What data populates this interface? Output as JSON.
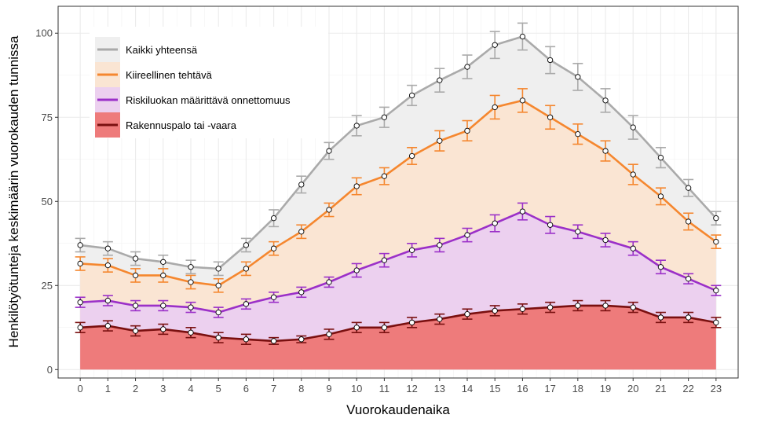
{
  "chart_data": {
    "type": "area",
    "title": "",
    "xlabel": "Vuorokaudenaika",
    "ylabel": "Henkilötyötunteja keskimäärin vuorokauden tunnissa",
    "x": [
      0,
      1,
      2,
      3,
      4,
      5,
      6,
      7,
      8,
      9,
      10,
      11,
      12,
      13,
      14,
      15,
      16,
      17,
      18,
      19,
      20,
      21,
      22,
      23
    ],
    "xlim": [
      -0.8,
      23.8
    ],
    "ylim": [
      -2.5,
      108
    ],
    "yticks": [
      0,
      25,
      50,
      75,
      100
    ],
    "grid": true,
    "legend_position": "top-left",
    "series": [
      {
        "name": "Kaikki yhteensä",
        "line_color": "#aaaaaa",
        "fill_color": "#efefef",
        "values": [
          37,
          36,
          33,
          32,
          30.5,
          30,
          37,
          45,
          55,
          65,
          72.5,
          75,
          81.5,
          86,
          90,
          96.5,
          99,
          92,
          87,
          80,
          72,
          63,
          54,
          45
        ],
        "error": [
          2,
          2,
          2,
          2,
          2,
          2,
          2,
          2.5,
          2.5,
          2.5,
          3,
          3,
          3,
          3.5,
          3.5,
          4,
          4,
          4,
          4,
          3.5,
          3.5,
          3,
          2.5,
          2
        ]
      },
      {
        "name": "Kiireellinen tehtävä",
        "line_color": "#f5872f",
        "fill_color": "#fae5d3",
        "values": [
          31.5,
          31,
          28,
          28,
          26,
          25,
          30,
          36,
          41,
          47.5,
          54.5,
          57.5,
          63.5,
          68,
          71,
          78,
          80,
          75,
          70,
          65,
          58,
          51.5,
          44,
          38
        ],
        "error": [
          2,
          2,
          2,
          2,
          2,
          2,
          2,
          2,
          2,
          2,
          2.5,
          2.5,
          2.5,
          3,
          3,
          3.5,
          3.5,
          3.5,
          3,
          3,
          3,
          2.5,
          2.5,
          2
        ]
      },
      {
        "name": "Riskiluokan määrittävä onnettomuus",
        "line_color": "#9b30c8",
        "fill_color": "#ecd0ef",
        "values": [
          20,
          20.5,
          19,
          19,
          18.5,
          17,
          19.5,
          21.5,
          23,
          26,
          29.5,
          32.5,
          35.5,
          37,
          40,
          43.5,
          47,
          43,
          41,
          38.5,
          36,
          30.5,
          27,
          23.5
        ],
        "error": [
          1.5,
          1.5,
          1.5,
          1.5,
          1.5,
          1.5,
          1.5,
          1.5,
          1.5,
          1.5,
          2,
          2,
          2,
          2,
          2,
          2.5,
          2.5,
          2.5,
          2,
          2,
          2,
          2,
          1.5,
          1.5
        ]
      },
      {
        "name": "Rakennuspalo tai -vaara",
        "line_color": "#7a1010",
        "fill_color": "#ee7b7b",
        "values": [
          12.5,
          13,
          11.5,
          12,
          11,
          9.5,
          9,
          8.5,
          9,
          10.5,
          12.5,
          12.5,
          14,
          15,
          16.5,
          17.5,
          18,
          18.5,
          19,
          19,
          18.5,
          15.5,
          15.5,
          14
        ],
        "error": [
          1.5,
          1.5,
          1.5,
          1.5,
          1.5,
          1.5,
          1.5,
          1,
          1,
          1.5,
          1.5,
          1.5,
          1.5,
          1.5,
          1.5,
          1.5,
          1.5,
          1.5,
          1.5,
          1.5,
          1.5,
          1.5,
          1.5,
          1.5
        ]
      }
    ]
  }
}
